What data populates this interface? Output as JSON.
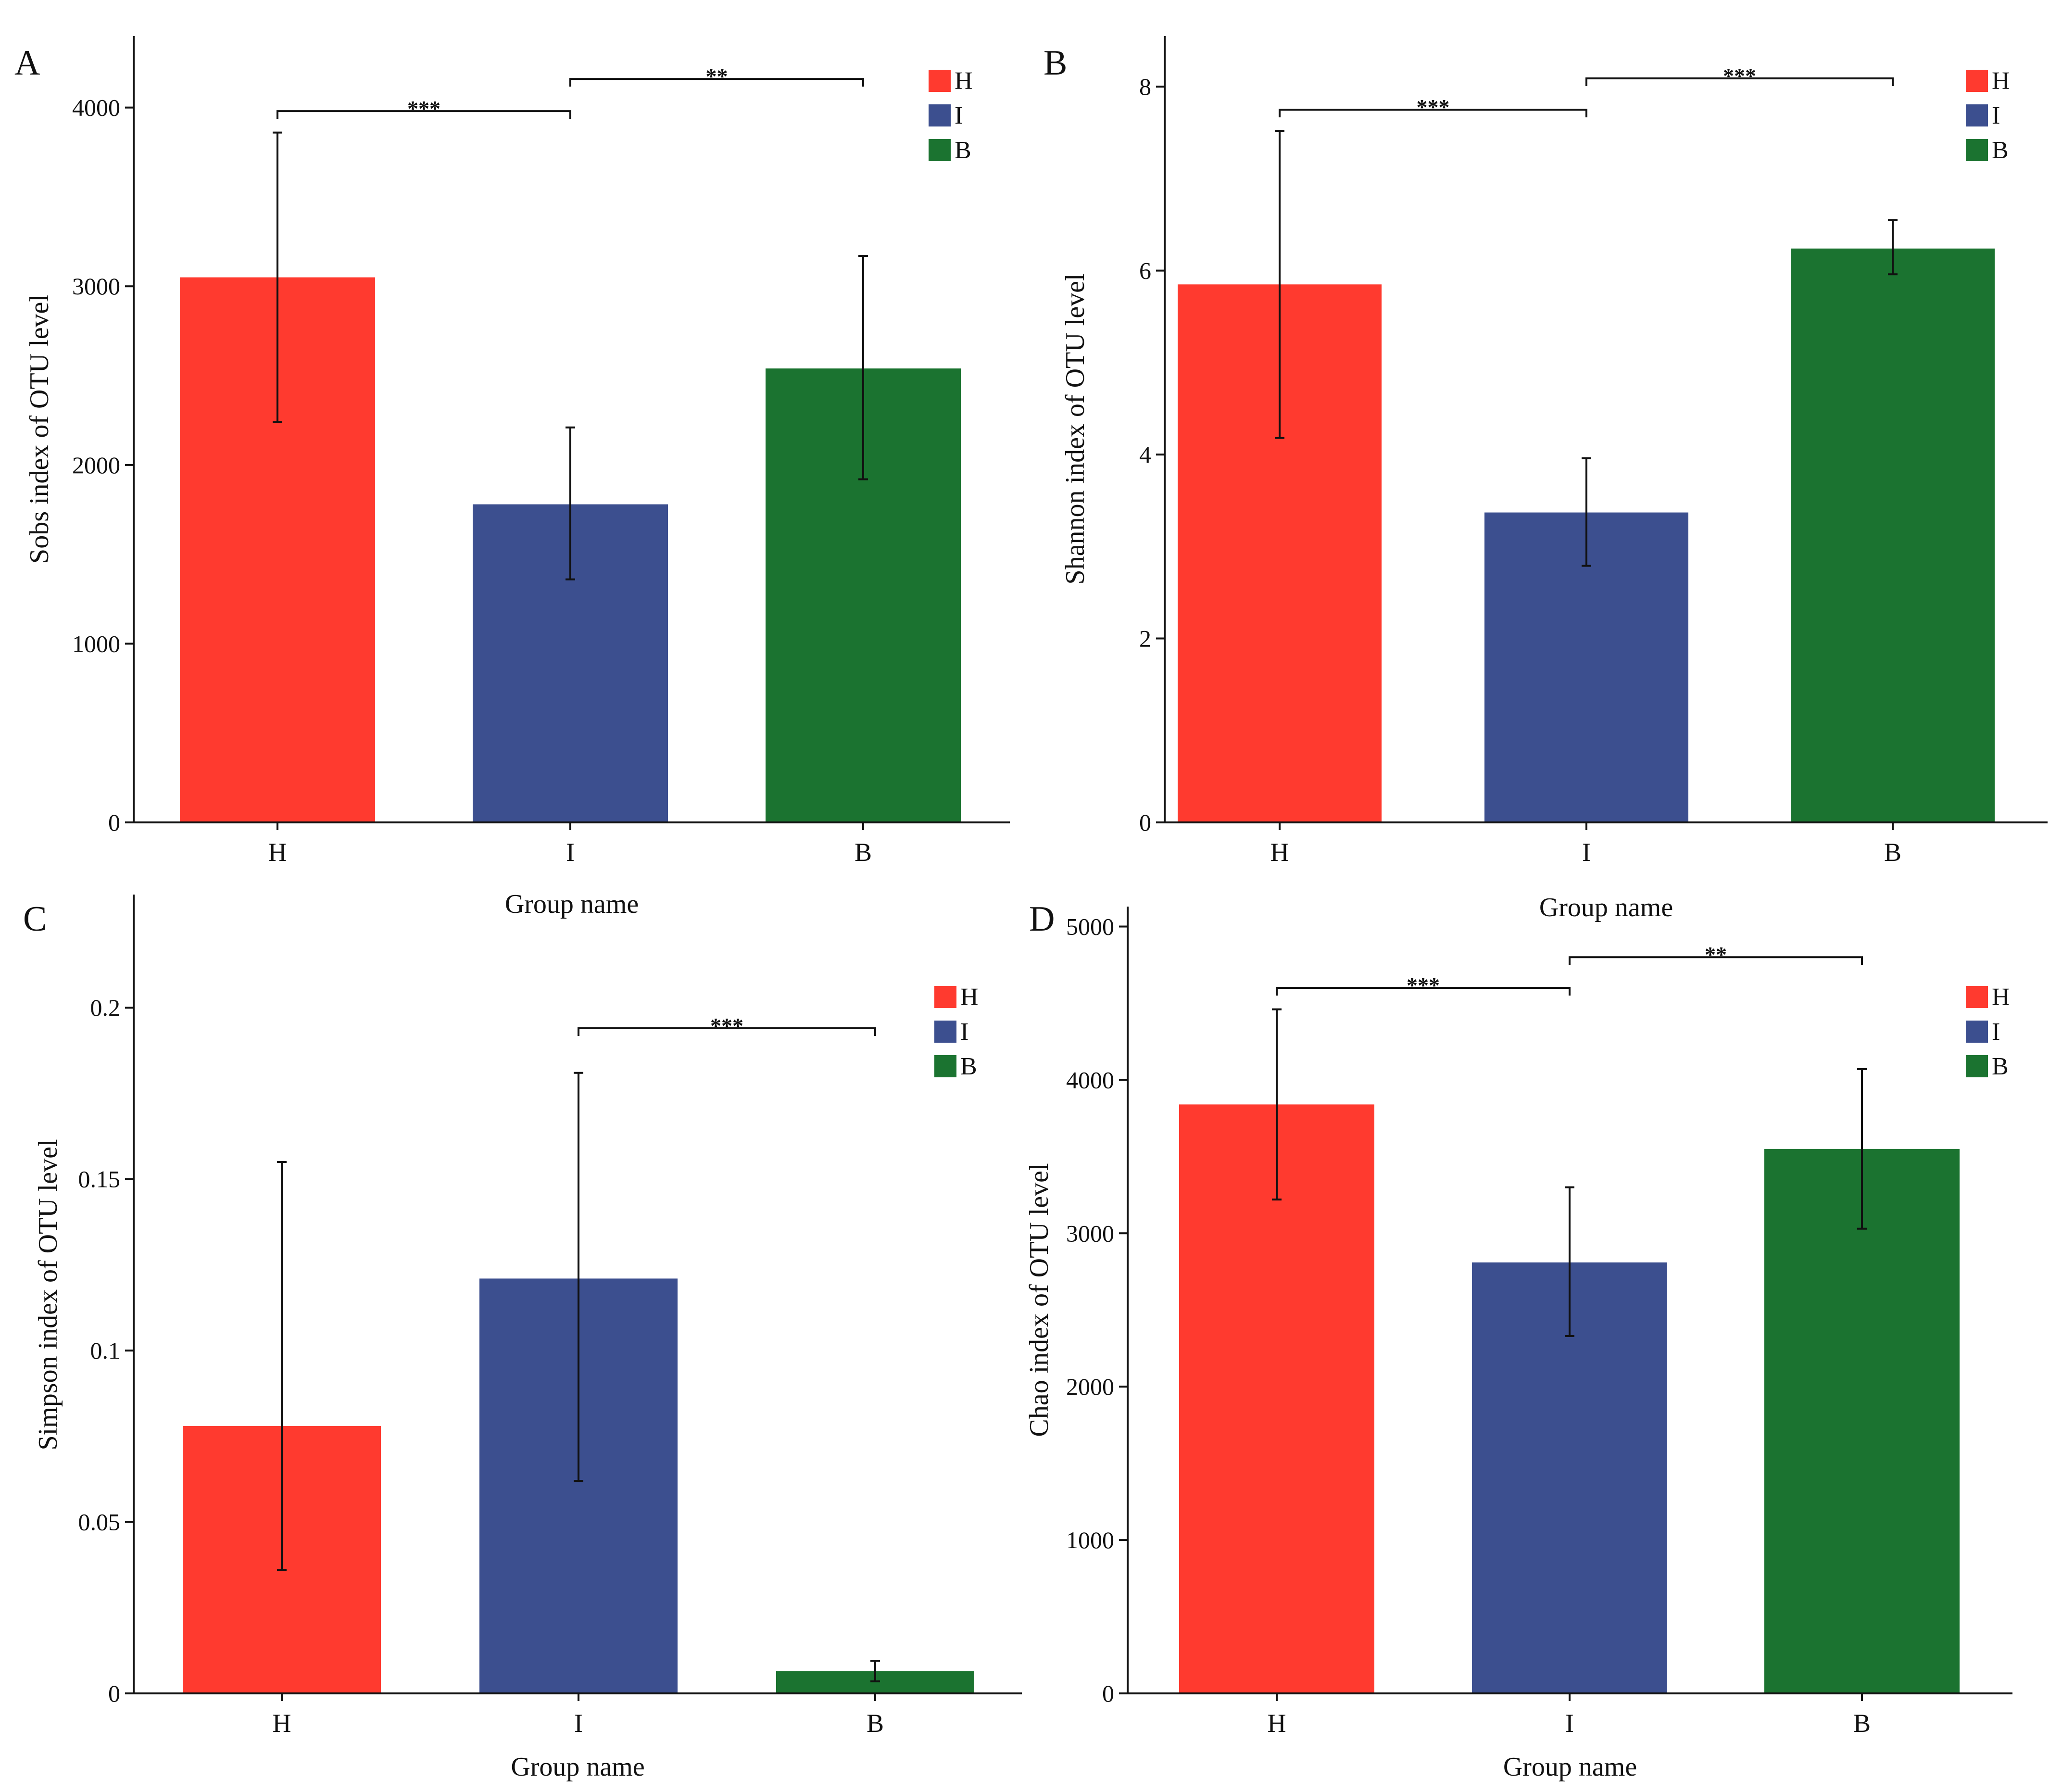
{
  "colors": {
    "H": "#ff3a2f",
    "I": "#3c4f8f",
    "B": "#1b7330",
    "axis": "#111111"
  },
  "chart_data": [
    {
      "type": "bar",
      "panel": "A",
      "title": "",
      "xlabel": "Group name",
      "ylabel": "Sobs index of OTU level",
      "categories": [
        "H",
        "I",
        "B"
      ],
      "values": [
        3050,
        1780,
        2540
      ],
      "error": [
        [
          2240,
          3860
        ],
        [
          1360,
          2210
        ],
        [
          1920,
          3170
        ]
      ],
      "ylim": [
        0,
        4400
      ],
      "yticks": [
        0,
        1000,
        2000,
        3000,
        4000
      ],
      "ytick_labels": [
        "0",
        "1000",
        "2000",
        "3000",
        "4000"
      ],
      "legend": [
        "H",
        "I",
        "B"
      ],
      "legend_position": "top-right",
      "significance": [
        {
          "from": "H",
          "to": "I",
          "label": "***",
          "level": 3980
        },
        {
          "from": "I",
          "to": "B",
          "label": "**",
          "level": 4160
        }
      ]
    },
    {
      "type": "bar",
      "panel": "B",
      "title": "",
      "xlabel": "Group name",
      "ylabel": "Shannon index of OTU level",
      "categories": [
        "H",
        "I",
        "B"
      ],
      "values": [
        5.85,
        3.37,
        6.24
      ],
      "error": [
        [
          4.18,
          7.52
        ],
        [
          2.79,
          3.96
        ],
        [
          5.96,
          6.55
        ]
      ],
      "ylim": [
        0,
        8.55
      ],
      "yticks": [
        0,
        2,
        4,
        6,
        8
      ],
      "ytick_labels": [
        "0",
        "2",
        "4",
        "6",
        "8"
      ],
      "legend": [
        "H",
        "I",
        "B"
      ],
      "legend_position": "top-right",
      "significance": [
        {
          "from": "H",
          "to": "I",
          "label": "***",
          "level": 7.75
        },
        {
          "from": "I",
          "to": "B",
          "label": "***",
          "level": 8.09
        }
      ]
    },
    {
      "type": "bar",
      "panel": "C",
      "title": "",
      "xlabel": "Group name",
      "ylabel": "Simpson index of OTU level",
      "categories": [
        "H",
        "I",
        "B"
      ],
      "values": [
        0.078,
        0.121,
        0.0065
      ],
      "error": [
        [
          0.036,
          0.155
        ],
        [
          0.062,
          0.181
        ],
        [
          0.0035,
          0.0095
        ]
      ],
      "ylim": [
        0,
        0.233
      ],
      "yticks": [
        0,
        0.05,
        0.1,
        0.15,
        0.2
      ],
      "ytick_labels": [
        "0",
        "0.05",
        "0.1",
        "0.15",
        "0.2"
      ],
      "legend": [
        "H",
        "I",
        "B"
      ],
      "legend_position": "top-right",
      "significance": [
        {
          "from": "I",
          "to": "B",
          "label": "***",
          "level": 0.194
        }
      ]
    },
    {
      "type": "bar",
      "panel": "D",
      "title": "",
      "xlabel": "Group name",
      "ylabel": "Chao index of OTU level",
      "categories": [
        "H",
        "I",
        "B"
      ],
      "values": [
        3840,
        2810,
        3550
      ],
      "error": [
        [
          3220,
          4460
        ],
        [
          2330,
          3300
        ],
        [
          3030,
          4070
        ]
      ],
      "ylim": [
        0,
        5130
      ],
      "yticks": [
        0,
        1000,
        2000,
        3000,
        4000,
        5000
      ],
      "ytick_labels": [
        "0",
        "1000",
        "2000",
        "3000",
        "4000",
        "5000"
      ],
      "legend": [
        "H",
        "I",
        "B"
      ],
      "legend_position": "top-right",
      "significance": [
        {
          "from": "H",
          "to": "I",
          "label": "***",
          "level": 4600
        },
        {
          "from": "I",
          "to": "B",
          "label": "**",
          "level": 4800
        }
      ]
    }
  ]
}
